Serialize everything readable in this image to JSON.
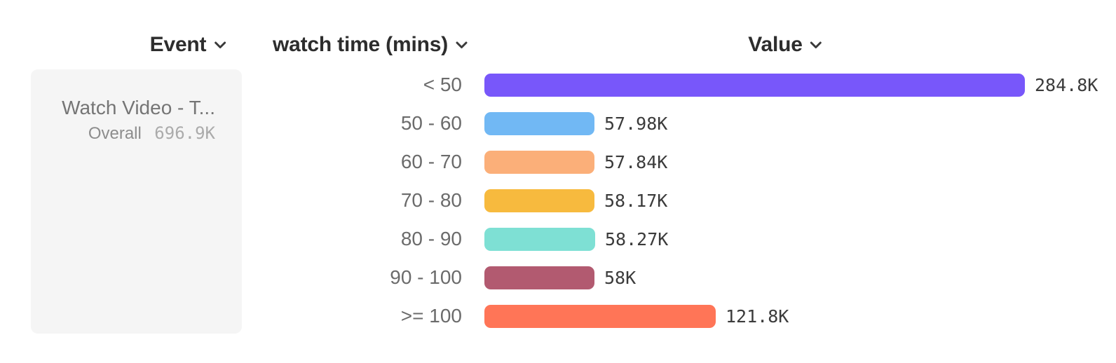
{
  "columns": {
    "event": {
      "label": "Event"
    },
    "breakdown": {
      "label": "watch time (mins)"
    },
    "value": {
      "label": "Value"
    }
  },
  "event_card": {
    "name": "Watch Video - T...",
    "overall_label": "Overall",
    "overall_value": "696.9K"
  },
  "chart_data": {
    "type": "bar",
    "orientation": "horizontal",
    "title": "",
    "xlabel": "Value",
    "ylabel": "watch time (mins)",
    "series_name": "Watch Video - T...",
    "overall_total": "696.9K",
    "categories": [
      "< 50",
      "50 - 60",
      "60 - 70",
      "70 - 80",
      "80 - 90",
      "90 - 100",
      ">= 100"
    ],
    "values": [
      284800,
      57980,
      57840,
      58170,
      58270,
      58000,
      121800
    ],
    "value_labels": [
      "284.8K",
      "57.98K",
      "57.84K",
      "58.17K",
      "58.27K",
      "58K",
      "121.8K"
    ],
    "bar_colors": [
      "#7857FA",
      "#71B8F4",
      "#FBAF79",
      "#F7BA3E",
      "#7EE0D4",
      "#B25A70",
      "#FF7557"
    ],
    "xlim": [
      0,
      284800
    ],
    "grid": false,
    "legend": false
  },
  "icons": {
    "chevron_color": "#3a3a3a"
  },
  "layout_colors": {
    "background": "#ffffff",
    "card_background": "#f5f5f5"
  }
}
